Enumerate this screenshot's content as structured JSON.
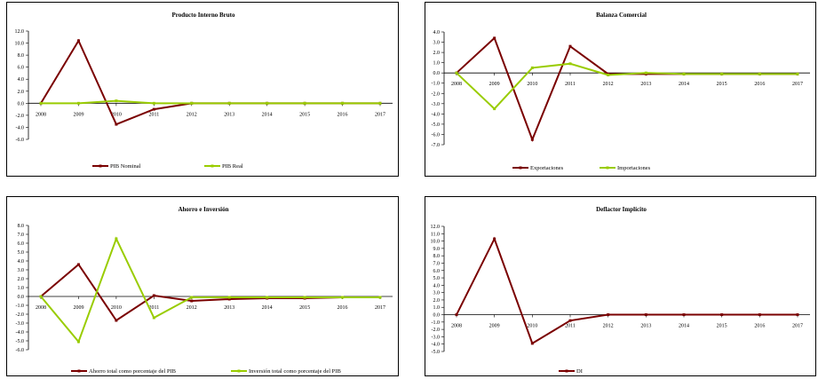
{
  "colors": {
    "series1": "#7a0000",
    "series2": "#99cc00"
  },
  "chart_data": [
    {
      "type": "line",
      "title": "Producto Interno Bruto",
      "x": [
        "2008",
        "2009",
        "2010",
        "2011",
        "2012",
        "2013",
        "2014",
        "2015",
        "2016",
        "2017"
      ],
      "ylim": [
        -6,
        12
      ],
      "ystep": 2,
      "yfmt": 1,
      "legend": "bottom",
      "series": [
        {
          "name": "PIB Nominal",
          "values": [
            0.0,
            10.4,
            -3.5,
            -1.0,
            0.0,
            0.0,
            0.0,
            0.0,
            0.0,
            0.0
          ]
        },
        {
          "name": "PIB Real",
          "values": [
            0.0,
            0.0,
            0.4,
            0.0,
            0.0,
            0.0,
            0.0,
            0.0,
            0.0,
            0.0
          ]
        }
      ]
    },
    {
      "type": "line",
      "title": "Balanza Comercial",
      "x": [
        "2008",
        "2009",
        "2010",
        "2011",
        "2012",
        "2013",
        "2014",
        "2015",
        "2016",
        "2017"
      ],
      "ylim": [
        -7,
        4
      ],
      "ystep": 1,
      "yfmt": 1,
      "legend": "bottom",
      "series": [
        {
          "name": "Exportaciones",
          "values": [
            0.0,
            3.4,
            -6.5,
            2.6,
            -0.1,
            -0.1,
            -0.1,
            -0.1,
            -0.1,
            -0.1
          ]
        },
        {
          "name": "Importaciones",
          "values": [
            0.0,
            -3.5,
            0.5,
            0.9,
            -0.2,
            0.0,
            -0.1,
            -0.1,
            -0.1,
            -0.1
          ]
        }
      ]
    },
    {
      "type": "line",
      "title": "Ahorro e Inversión",
      "x": [
        "2008",
        "2009",
        "2010",
        "2011",
        "2012",
        "2013",
        "2014",
        "2015",
        "2016",
        "2017"
      ],
      "ylim": [
        -6,
        8
      ],
      "ystep": 1,
      "yfmt": 1,
      "legend": "bottom",
      "series": [
        {
          "name": "Ahorro total como porcentaje del PIB",
          "values": [
            0.0,
            3.6,
            -2.7,
            0.1,
            -0.5,
            -0.3,
            -0.2,
            -0.2,
            -0.1,
            null
          ]
        },
        {
          "name": "Inversión total como porcentaje del PIB",
          "values": [
            0.0,
            -5.1,
            6.5,
            -2.4,
            -0.1,
            -0.1,
            -0.1,
            -0.1,
            -0.1,
            -0.1
          ]
        }
      ]
    },
    {
      "type": "line",
      "title": "Deflactor Implícito",
      "x": [
        "2008",
        "2009",
        "2010",
        "2011",
        "2012",
        "2013",
        "2014",
        "2015",
        "2016",
        "2017"
      ],
      "ylim": [
        -5,
        12
      ],
      "ystep": 1,
      "yfmt": 1,
      "legend": "bottom",
      "series": [
        {
          "name": "DI",
          "values": [
            0.0,
            10.3,
            -3.9,
            -0.8,
            0.0,
            0.0,
            0.0,
            0.0,
            0.0,
            0.0
          ]
        }
      ]
    }
  ]
}
